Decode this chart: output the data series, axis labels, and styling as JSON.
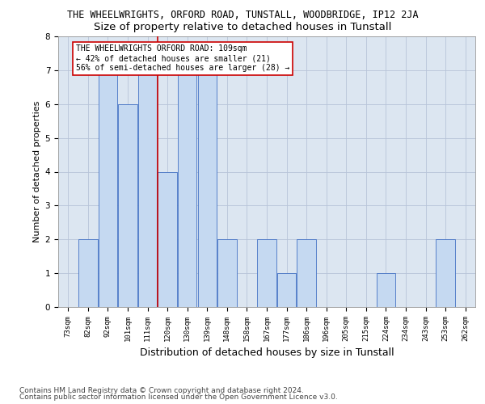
{
  "title1": "THE WHEELWRIGHTS, ORFORD ROAD, TUNSTALL, WOODBRIDGE, IP12 2JA",
  "title2": "Size of property relative to detached houses in Tunstall",
  "xlabel": "Distribution of detached houses by size in Tunstall",
  "ylabel": "Number of detached properties",
  "categories": [
    "73sqm",
    "82sqm",
    "92sqm",
    "101sqm",
    "111sqm",
    "120sqm",
    "130sqm",
    "139sqm",
    "148sqm",
    "158sqm",
    "167sqm",
    "177sqm",
    "186sqm",
    "196sqm",
    "205sqm",
    "215sqm",
    "224sqm",
    "234sqm",
    "243sqm",
    "253sqm",
    "262sqm"
  ],
  "values": [
    0,
    2,
    7,
    6,
    7,
    4,
    7,
    7,
    2,
    0,
    2,
    1,
    2,
    0,
    0,
    0,
    1,
    0,
    0,
    2,
    0
  ],
  "bar_color": "#c5d9f1",
  "bar_edge_color": "#4472c4",
  "highlight_index": 4,
  "highlight_line_color": "#cc0000",
  "ylim": [
    0,
    8
  ],
  "yticks": [
    0,
    1,
    2,
    3,
    4,
    5,
    6,
    7,
    8
  ],
  "annotation_text": "THE WHEELWRIGHTS ORFORD ROAD: 109sqm\n← 42% of detached houses are smaller (21)\n56% of semi-detached houses are larger (28) →",
  "annotation_box_color": "#ffffff",
  "annotation_box_edge": "#cc0000",
  "footer1": "Contains HM Land Registry data © Crown copyright and database right 2024.",
  "footer2": "Contains public sector information licensed under the Open Government Licence v3.0.",
  "bg_color": "#ffffff",
  "plot_bg_color": "#dce6f1",
  "grid_color": "#b8c4d8",
  "title1_fontsize": 8.5,
  "title2_fontsize": 9.5,
  "ylabel_fontsize": 8,
  "xlabel_fontsize": 9,
  "tick_fontsize": 6.5,
  "annotation_fontsize": 7,
  "footer_fontsize": 6.5
}
